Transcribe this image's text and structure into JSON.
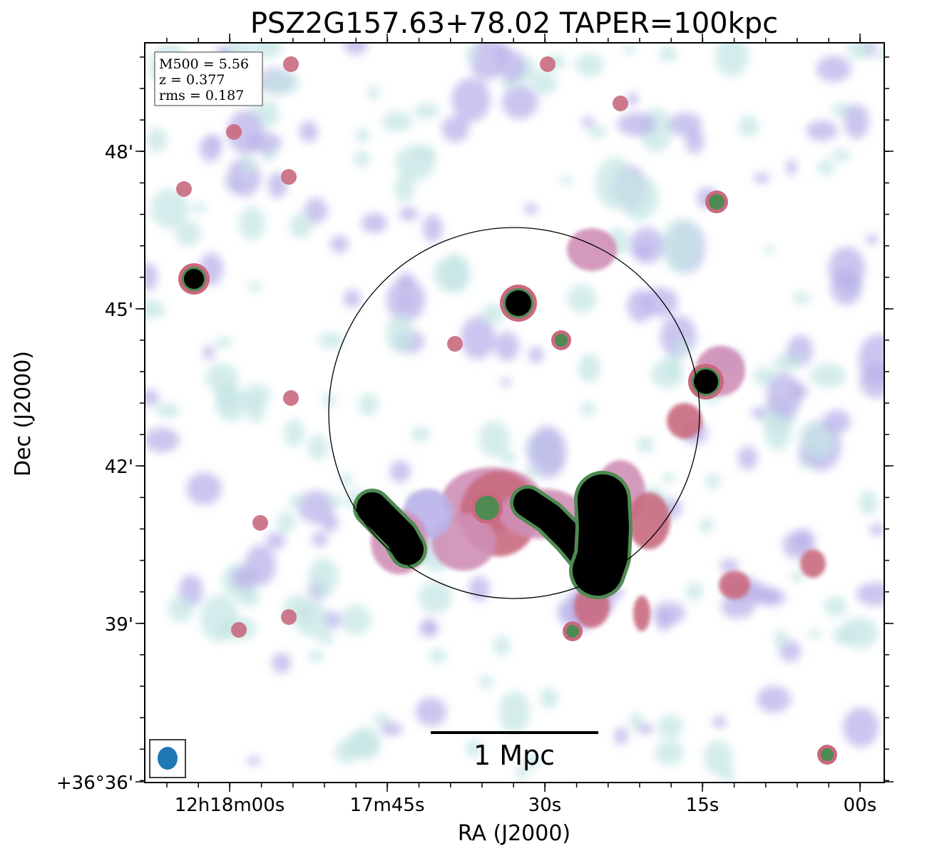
{
  "title": "PSZ2G157.63+78.02 TAPER=100kpc",
  "xlabel": "RA (J2000)",
  "ylabel": "Dec (J2000)",
  "x_ticks": [
    "12h18m00s",
    "17m45s",
    "30s",
    "15s",
    "00s"
  ],
  "y_ticks": [
    "+36°36'",
    "39'",
    "42'",
    "45'",
    "48'"
  ],
  "info_box": {
    "m500": "M500 = 5.56",
    "z": "z = 0.377",
    "rms": "rms = 0.187"
  },
  "scale_bar_label": "1 Mpc",
  "colors": {
    "faint": "#c6e6e4",
    "low": "#b9b2ea",
    "mid": "#cf8fb6",
    "high": "#c9697f",
    "peak": "#4f8a52",
    "saturated": "#000000",
    "beam": "#1f77b4"
  }
}
